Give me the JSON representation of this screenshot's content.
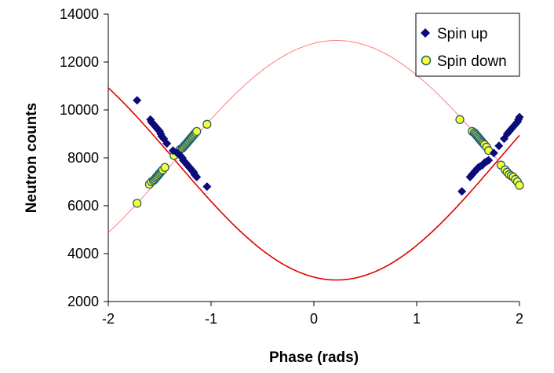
{
  "chart_data": {
    "type": "scatter",
    "xlabel": "Phase (rads)",
    "ylabel": "Neutron counts",
    "xlim": [
      -2,
      2
    ],
    "ylim": [
      2000,
      14000
    ],
    "xticks": [
      "-2",
      "-1",
      "0",
      "1",
      "2"
    ],
    "yticks": [
      "2000",
      "4000",
      "6000",
      "8000",
      "10000",
      "12000",
      "14000"
    ],
    "grid": false,
    "legend_position": "top-right",
    "colors": {
      "spin_up": "#0b0b7a",
      "spin_down_fill": "#ffff33",
      "spin_down_edge": "#1f6070",
      "fit_up": "#e00000",
      "fit_down": "#ff7070"
    },
    "series": [
      {
        "name": "Spin up",
        "marker": "diamond",
        "x": [
          -1.72,
          -1.59,
          -1.58,
          -1.57,
          -1.56,
          -1.55,
          -1.54,
          -1.53,
          -1.52,
          -1.51,
          -1.5,
          -1.49,
          -1.48,
          -1.46,
          -1.43,
          -1.37,
          -1.33,
          -1.3,
          -1.28,
          -1.27,
          -1.26,
          -1.25,
          -1.24,
          -1.23,
          -1.22,
          -1.21,
          -1.2,
          -1.19,
          -1.18,
          -1.17,
          -1.16,
          -1.14,
          -1.04,
          1.44,
          1.52,
          1.54,
          1.56,
          1.57,
          1.58,
          1.59,
          1.6,
          1.62,
          1.64,
          1.66,
          1.68,
          1.7,
          1.75,
          1.8,
          1.85,
          1.88,
          1.9,
          1.92,
          1.94,
          1.96,
          1.98,
          1.99,
          2.0
        ],
        "y": [
          10400,
          9600,
          9500,
          9450,
          9400,
          9350,
          9300,
          9250,
          9200,
          9150,
          9100,
          9000,
          8900,
          8800,
          8600,
          8300,
          8200,
          8100,
          8000,
          7900,
          7850,
          7800,
          7750,
          7700,
          7650,
          7600,
          7550,
          7500,
          7450,
          7400,
          7300,
          7200,
          6800,
          6600,
          7200,
          7300,
          7400,
          7450,
          7500,
          7550,
          7600,
          7650,
          7700,
          7800,
          7850,
          7900,
          8200,
          8500,
          8800,
          9000,
          9100,
          9200,
          9300,
          9400,
          9500,
          9600,
          9700
        ]
      },
      {
        "name": "Spin down",
        "marker": "circle",
        "x": [
          -1.72,
          -1.6,
          -1.58,
          -1.56,
          -1.55,
          -1.54,
          -1.53,
          -1.52,
          -1.51,
          -1.5,
          -1.49,
          -1.48,
          -1.47,
          -1.45,
          -1.36,
          -1.32,
          -1.3,
          -1.28,
          -1.27,
          -1.26,
          -1.25,
          -1.24,
          -1.23,
          -1.22,
          -1.21,
          -1.2,
          -1.19,
          -1.18,
          -1.17,
          -1.16,
          -1.15,
          -1.14,
          -1.04,
          1.42,
          1.54,
          1.56,
          1.57,
          1.58,
          1.59,
          1.6,
          1.61,
          1.62,
          1.63,
          1.64,
          1.65,
          1.66,
          1.68,
          1.7,
          1.82,
          1.86,
          1.88,
          1.9,
          1.92,
          1.94,
          1.96,
          1.98,
          2.0
        ],
        "y": [
          6100,
          6900,
          7000,
          7050,
          7100,
          7150,
          7200,
          7250,
          7300,
          7350,
          7400,
          7450,
          7500,
          7600,
          8100,
          8250,
          8350,
          8400,
          8450,
          8500,
          8550,
          8600,
          8650,
          8700,
          8750,
          8800,
          8850,
          8900,
          8950,
          9000,
          9050,
          9100,
          9400,
          9600,
          9100,
          9050,
          9000,
          8950,
          8900,
          8850,
          8800,
          8750,
          8700,
          8650,
          8600,
          8550,
          8450,
          8300,
          7700,
          7500,
          7400,
          7300,
          7250,
          7200,
          7100,
          7000,
          6850
        ]
      }
    ],
    "fits": [
      {
        "series": "Spin up",
        "offset": 7900,
        "amplitude": 5000,
        "phase_center": 0.22
      },
      {
        "series": "Spin down",
        "offset": 7900,
        "amplitude": 5000,
        "phase_center": 0.22
      }
    ]
  }
}
